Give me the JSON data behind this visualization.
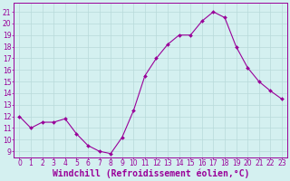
{
  "x": [
    0,
    1,
    2,
    3,
    4,
    5,
    6,
    7,
    8,
    9,
    10,
    11,
    12,
    13,
    14,
    15,
    16,
    17,
    18,
    19,
    20,
    21,
    22,
    23
  ],
  "y": [
    12,
    11,
    11.5,
    11.5,
    11.8,
    10.5,
    9.5,
    9,
    8.8,
    10.2,
    12.5,
    15.5,
    17,
    18.2,
    19,
    19,
    20.2,
    21,
    20.5,
    18,
    16.2,
    15,
    14.2,
    13.5
  ],
  "line_color": "#990099",
  "marker_color": "#990099",
  "bg_color": "#d4f0f0",
  "grid_color": "#b8dada",
  "xlabel": "Windchill (Refroidissement éolien,°C)",
  "xlabel_color": "#990099",
  "yticks": [
    9,
    10,
    11,
    12,
    13,
    14,
    15,
    16,
    17,
    18,
    19,
    20,
    21
  ],
  "xticks": [
    0,
    1,
    2,
    3,
    4,
    5,
    6,
    7,
    8,
    9,
    10,
    11,
    12,
    13,
    14,
    15,
    16,
    17,
    18,
    19,
    20,
    21,
    22,
    23
  ],
  "ylim": [
    8.5,
    21.8
  ],
  "xlim": [
    -0.5,
    23.5
  ],
  "tick_color": "#990099",
  "tick_labelsize": 5.5,
  "xlabel_fontsize": 7.0
}
